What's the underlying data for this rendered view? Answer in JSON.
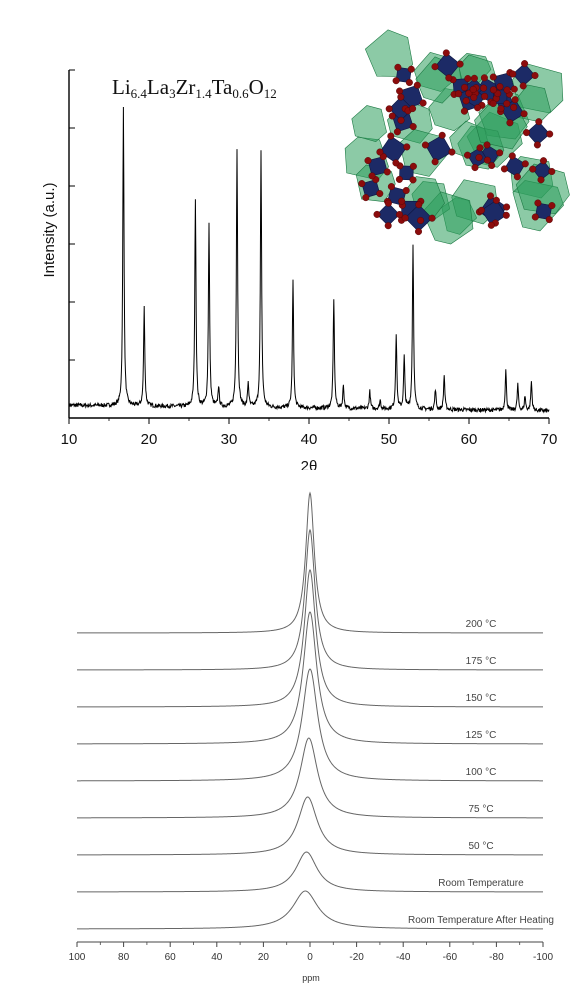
{
  "chart_data": [
    {
      "type": "line",
      "formula": {
        "parts": [
          {
            "t": "Li"
          },
          {
            "s": "6.4"
          },
          {
            "t": "La"
          },
          {
            "s": "3"
          },
          {
            "t": "Zr"
          },
          {
            "s": "1.4"
          },
          {
            "t": "Ta"
          },
          {
            "s": "0.6"
          },
          {
            "t": "O"
          },
          {
            "s": "12"
          }
        ]
      },
      "xlabel": "2θ",
      "ylabel": "Intensity (a.u.)",
      "xlim": [
        10,
        70
      ],
      "ylim": [
        0,
        600
      ],
      "x_ticks": [
        "10",
        "20",
        "30",
        "40",
        "50",
        "60",
        "70"
      ],
      "baseline": 22,
      "peaks": [
        {
          "x": 16.8,
          "y": 515
        },
        {
          "x": 19.4,
          "y": 170
        },
        {
          "x": 25.8,
          "y": 360
        },
        {
          "x": 27.5,
          "y": 315
        },
        {
          "x": 28.7,
          "y": 35
        },
        {
          "x": 31.0,
          "y": 445
        },
        {
          "x": 32.4,
          "y": 42
        },
        {
          "x": 34.0,
          "y": 440
        },
        {
          "x": 38.0,
          "y": 220
        },
        {
          "x": 43.1,
          "y": 190
        },
        {
          "x": 44.3,
          "y": 40
        },
        {
          "x": 47.6,
          "y": 30
        },
        {
          "x": 48.9,
          "y": 15
        },
        {
          "x": 50.9,
          "y": 130
        },
        {
          "x": 51.9,
          "y": 90
        },
        {
          "x": 53.0,
          "y": 285
        },
        {
          "x": 55.8,
          "y": 35
        },
        {
          "x": 56.9,
          "y": 60
        },
        {
          "x": 64.6,
          "y": 70
        },
        {
          "x": 66.1,
          "y": 45
        },
        {
          "x": 67.0,
          "y": 25
        },
        {
          "x": 67.8,
          "y": 50
        }
      ],
      "inset_image": "garnet-crystal-structure",
      "colors": {
        "trace": "#000000",
        "polyhedra_green": "#2e9e5c",
        "polyhedra_blue": "#1c2a66",
        "oxygen": "#8b0c0c"
      }
    },
    {
      "type": "line",
      "xlabel": "ppm",
      "xlim": [
        100,
        -100
      ],
      "x_ticks": [
        "100",
        "80",
        "60",
        "40",
        "20",
        "0",
        "-20",
        "-40",
        "-60",
        "-80",
        "-100"
      ],
      "series": [
        {
          "name": "200 °C",
          "center": 0.0,
          "width": 2.2,
          "height": 140
        },
        {
          "name": "175 °C",
          "center": 0.0,
          "width": 2.6,
          "height": 140
        },
        {
          "name": "150 °C",
          "center": 0.0,
          "width": 3.0,
          "height": 137
        },
        {
          "name": "125 °C",
          "center": 0.0,
          "width": 3.5,
          "height": 132
        },
        {
          "name": "100 °C",
          "center": 0.0,
          "width": 4.0,
          "height": 112
        },
        {
          "name": "75 °C",
          "center": 0.5,
          "width": 4.5,
          "height": 80
        },
        {
          "name": "50 °C",
          "center": 1.0,
          "width": 5.0,
          "height": 58
        },
        {
          "name": "Room Temperature",
          "center": 1.5,
          "width": 5.5,
          "height": 40
        },
        {
          "name": "Room Temperature After Heating",
          "center": 2.0,
          "width": 6.5,
          "height": 38
        }
      ],
      "colors": {
        "trace": "#666666"
      }
    }
  ]
}
